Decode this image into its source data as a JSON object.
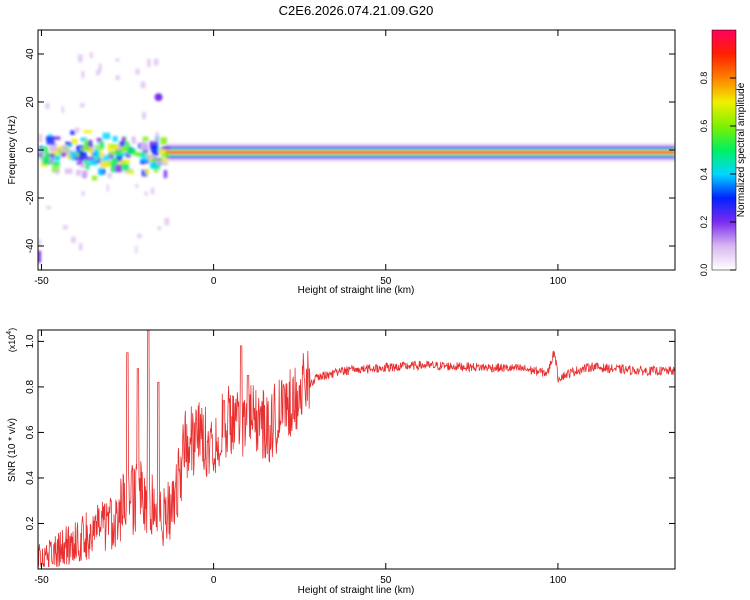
{
  "title": "C2E6.2026.074.21.09.G20",
  "colors": {
    "line": "#e83030",
    "frame": "#000000",
    "background": "#ffffff",
    "colorbar_stops": [
      "#ffffff",
      "#d8b8f0",
      "#7a2cf0",
      "#0022ff",
      "#00d8ff",
      "#00f060",
      "#80f000",
      "#f0f000",
      "#ff8000",
      "#ff2000",
      "#ff0060"
    ]
  },
  "chart_data": [
    {
      "type": "heatmap",
      "name": "spectrogram",
      "xlabel": "Height of straight line (km)",
      "ylabel": "Frequency (Hz)",
      "xlim": [
        -51,
        134
      ],
      "ylim": [
        -50,
        50
      ],
      "x_ticks": [
        "-50",
        "0",
        "50",
        "100"
      ],
      "x_tick_values": [
        -50,
        0,
        50,
        100
      ],
      "y_ticks": [
        "40",
        "20",
        "0",
        "-20",
        "-40"
      ],
      "y_tick_values": [
        40,
        20,
        0,
        -20,
        -40
      ],
      "band_center_hz": -1,
      "ridge_start_km": -14,
      "ridge_end_km": 134,
      "noisy_region_km": [
        -51,
        -14
      ],
      "isolated_blob": {
        "x_km": -16,
        "y_hz": 22
      },
      "colorbar": {
        "label": "Normalized spectral amplitude",
        "range": [
          0,
          1
        ],
        "ticks": [
          "0.0",
          "0.2",
          "0.4",
          "0.6",
          "0.8"
        ],
        "tick_values": [
          0,
          0.2,
          0.4,
          0.6,
          0.8
        ]
      }
    },
    {
      "type": "line",
      "name": "snr",
      "xlabel": "Height of straight line (km)",
      "ylabel": "SNR (10 * v/v)",
      "y_multiplier": "(x10",
      "y_multiplier_exponent": "4",
      "y_multiplier_close": ")",
      "xlim": [
        -51,
        134
      ],
      "ylim": [
        0,
        1.05
      ],
      "x_ticks": [
        "-50",
        "0",
        "50",
        "100"
      ],
      "x_tick_values": [
        -50,
        0,
        50,
        100
      ],
      "y_ticks": [
        "0.2",
        "0.4",
        "0.6",
        "0.8",
        "1.0"
      ],
      "y_tick_values": [
        0.2,
        0.4,
        0.6,
        0.8,
        1.0
      ],
      "trend": [
        [
          -51,
          0.04
        ],
        [
          -40,
          0.12
        ],
        [
          -30,
          0.2
        ],
        [
          -25,
          0.3
        ],
        [
          -20,
          0.32
        ],
        [
          -15,
          0.22
        ],
        [
          -12,
          0.28
        ],
        [
          -8,
          0.55
        ],
        [
          -4,
          0.58
        ],
        [
          0,
          0.55
        ],
        [
          4,
          0.66
        ],
        [
          8,
          0.62
        ],
        [
          12,
          0.66
        ],
        [
          16,
          0.62
        ],
        [
          20,
          0.7
        ],
        [
          25,
          0.78
        ],
        [
          30,
          0.84
        ],
        [
          35,
          0.86
        ],
        [
          40,
          0.875
        ],
        [
          50,
          0.885
        ],
        [
          60,
          0.895
        ],
        [
          70,
          0.89
        ],
        [
          80,
          0.885
        ],
        [
          90,
          0.88
        ],
        [
          97,
          0.86
        ],
        [
          99,
          0.96
        ],
        [
          100,
          0.84
        ],
        [
          105,
          0.87
        ],
        [
          110,
          0.89
        ],
        [
          115,
          0.88
        ],
        [
          125,
          0.87
        ],
        [
          134,
          0.87
        ]
      ],
      "spikes": [
        [
          -25,
          0.95
        ],
        [
          -22,
          0.88
        ],
        [
          -19,
          1.05
        ],
        [
          -16,
          0.82
        ],
        [
          8,
          0.98
        ],
        [
          3,
          0.74
        ],
        [
          10,
          0.85
        ]
      ]
    }
  ]
}
